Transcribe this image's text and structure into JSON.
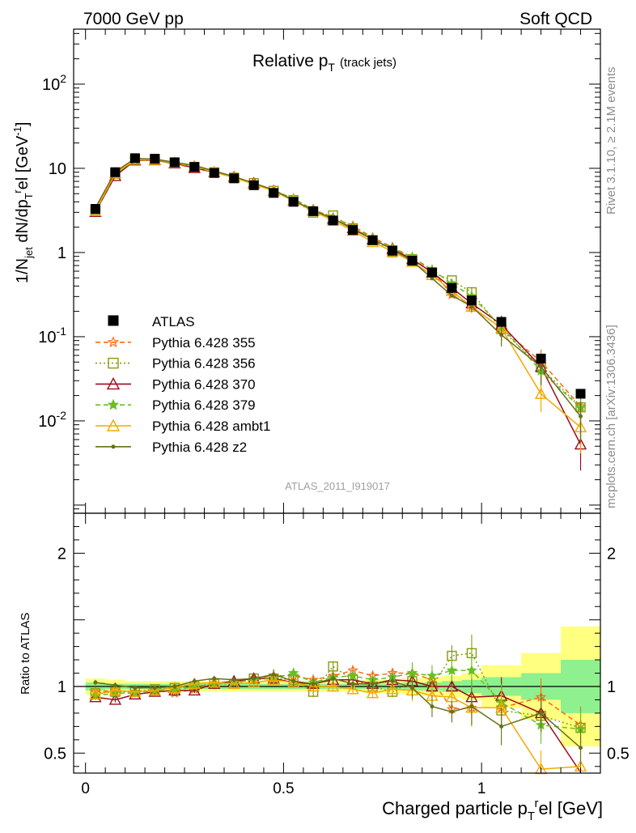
{
  "header": {
    "left": "7000 GeV pp",
    "right": "Soft QCD"
  },
  "side_labels": {
    "rivet": "Rivet 3.1.10, ≥ 2.1M events",
    "mcplots": "mcplots.cern.ch [arXiv:1306.3436]"
  },
  "chart_data": {
    "type": "line",
    "title": "Relative p_T (track jets)",
    "title_main": "Relative p",
    "title_sub": "T",
    "title_extra": "(track jets)",
    "analysis_id": "ATLAS_2011_I919017",
    "xlabel": "Charged particle p_T^rel [GeV]",
    "xlabel_main": "Charged particle p",
    "xlabel_sub": "T",
    "xlabel_sup": "r",
    "xlabel_tail": "el [GeV]",
    "ylabel": "1/N_jet dN/dp_T^rel [GeV^-1]",
    "ratio_ylabel": "Ratio to ATLAS",
    "xlim": [
      -0.03,
      1.3
    ],
    "ylim": [
      0.0008,
      450
    ],
    "ratio_ylim": [
      0.35,
      2.3
    ],
    "yscale": "log",
    "x_ticks": [
      0,
      0.5,
      1
    ],
    "x_tick_labels": [
      "0",
      "0.5",
      "1"
    ],
    "y_ticks": [
      0.01,
      0.1,
      1,
      10,
      100
    ],
    "ratio_ticks": [
      0.5,
      1,
      2
    ],
    "ratio_tick_labels": [
      "0.5",
      "1",
      "2"
    ],
    "x": [
      0.025,
      0.075,
      0.125,
      0.175,
      0.225,
      0.275,
      0.325,
      0.375,
      0.425,
      0.475,
      0.525,
      0.575,
      0.625,
      0.675,
      0.725,
      0.775,
      0.825,
      0.875,
      0.925,
      0.975,
      1.05,
      1.15,
      1.25
    ],
    "bin_edges": [
      0,
      0.05,
      0.1,
      0.15,
      0.2,
      0.25,
      0.3,
      0.35,
      0.4,
      0.45,
      0.5,
      0.55,
      0.6,
      0.65,
      0.7,
      0.75,
      0.8,
      0.85,
      0.9,
      0.95,
      1.0,
      1.1,
      1.2,
      1.3
    ],
    "data": {
      "name": "ATLAS",
      "values": [
        3.3,
        9.0,
        13.2,
        13.0,
        11.8,
        10.4,
        8.8,
        7.6,
        6.3,
        5.1,
        4.0,
        3.1,
        2.4,
        1.85,
        1.4,
        1.05,
        0.8,
        0.58,
        0.38,
        0.27,
        0.15,
        0.055,
        0.021
      ],
      "stat_band": [
        0.03,
        0.02,
        0.02,
        0.02,
        0.02,
        0.02,
        0.02,
        0.02,
        0.02,
        0.02,
        0.02,
        0.02,
        0.02,
        0.02,
        0.02,
        0.02,
        0.03,
        0.03,
        0.04,
        0.05,
        0.07,
        0.1,
        0.2
      ],
      "total_band": [
        0.06,
        0.05,
        0.04,
        0.04,
        0.04,
        0.04,
        0.04,
        0.04,
        0.04,
        0.04,
        0.04,
        0.04,
        0.04,
        0.04,
        0.05,
        0.05,
        0.06,
        0.07,
        0.08,
        0.1,
        0.16,
        0.25,
        0.45
      ]
    },
    "series": [
      {
        "name": "Pythia 6.428 355",
        "color": "#ff6a10",
        "dash": "6,4",
        "marker": "star-open",
        "ratio": [
          0.96,
          0.97,
          0.96,
          0.97,
          0.95,
          0.98,
          1.02,
          1.03,
          1.06,
          1.08,
          1.08,
          1.05,
          1.08,
          1.12,
          1.08,
          1.1,
          1.1,
          1.05,
          0.83,
          0.84,
          0.84,
          0.92,
          0.71
        ]
      },
      {
        "name": "Pythia 6.428 356",
        "color": "#8a9a10",
        "dash": "2,3",
        "marker": "square-open",
        "ratio": [
          0.95,
          0.96,
          0.96,
          0.98,
          0.99,
          1.0,
          1.02,
          1.02,
          1.06,
          1.06,
          1.05,
          0.96,
          1.15,
          1.05,
          1.0,
          0.96,
          1.04,
          1.0,
          1.23,
          1.25,
          0.82,
          0.78,
          0.69
        ]
      },
      {
        "name": "Pythia 6.428 370",
        "color": "#9c0c1a",
        "dash": "",
        "marker": "triangle-open",
        "ratio": [
          0.92,
          0.9,
          0.94,
          0.96,
          0.97,
          0.97,
          1.02,
          1.04,
          1.06,
          1.06,
          1.03,
          1.02,
          1.05,
          1.05,
          1.02,
          1.05,
          1.04,
          1.0,
          1.0,
          0.92,
          0.93,
          0.8,
          0.25
        ]
      },
      {
        "name": "Pythia 6.428 379",
        "color": "#68c020",
        "dash": "6,4",
        "marker": "star",
        "ratio": [
          0.93,
          0.95,
          0.95,
          0.97,
          0.97,
          1.0,
          1.02,
          1.03,
          1.05,
          1.06,
          1.1,
          1.03,
          1.07,
          1.08,
          1.05,
          1.07,
          1.1,
          1.08,
          1.12,
          1.12,
          0.88,
          0.71,
          0.68
        ]
      },
      {
        "name": "Pythia 6.428 ambt1",
        "color": "#f5a800",
        "dash": "",
        "marker": "triangle-open",
        "ratio": [
          0.94,
          0.97,
          0.96,
          0.97,
          0.99,
          1.02,
          1.03,
          1.02,
          1.03,
          1.05,
          1.03,
          1.0,
          1.0,
          0.98,
          0.95,
          0.98,
          0.97,
          0.93,
          0.92,
          0.84,
          0.84,
          0.38,
          0.4
        ]
      },
      {
        "name": "Pythia 6.428 z2",
        "color": "#687018",
        "dash": "",
        "marker": "dot",
        "ratio": [
          1.03,
          1.01,
          0.99,
          0.99,
          1.0,
          1.04,
          1.06,
          1.05,
          1.06,
          1.09,
          1.04,
          1.02,
          1.06,
          1.02,
          1.02,
          1.04,
          0.99,
          0.85,
          0.81,
          0.85,
          0.7,
          0.8,
          0.54
        ]
      }
    ]
  }
}
